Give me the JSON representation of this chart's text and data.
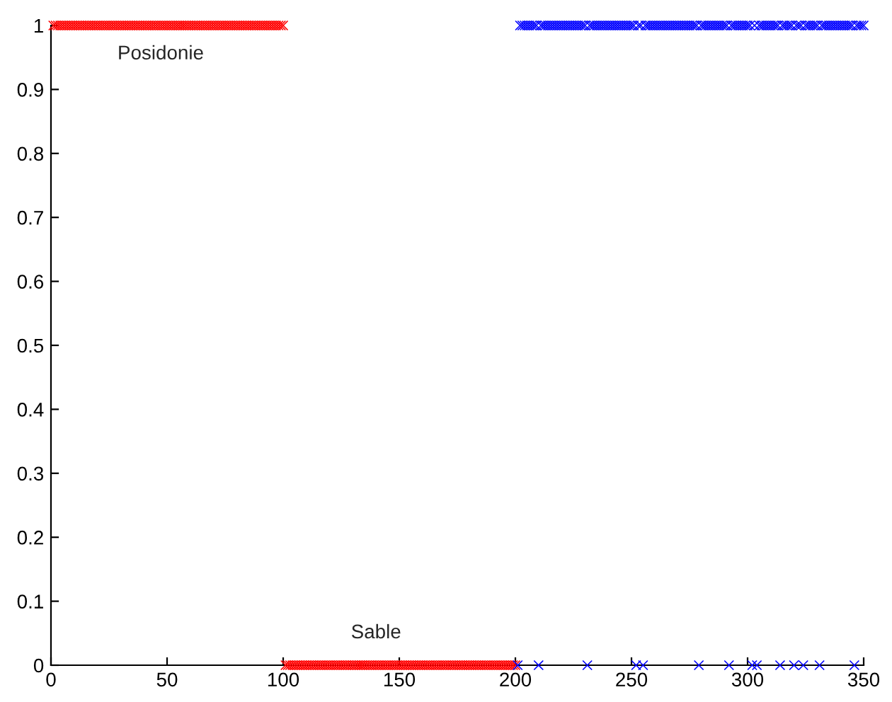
{
  "chart_data": {
    "type": "scatter",
    "marker": "cross",
    "grid": false,
    "legend": false,
    "xlim": [
      0,
      350
    ],
    "xticks": [
      0,
      50,
      100,
      150,
      200,
      250,
      300,
      350
    ],
    "ylim": [
      0,
      1
    ],
    "yticks": [
      0,
      0.1,
      0.2,
      0.3,
      0.4,
      0.5,
      0.6,
      0.7,
      0.8,
      0.9,
      1
    ],
    "annotations": [
      "Posidonie",
      "Sable"
    ],
    "series": [
      {
        "color": "#ff0000",
        "x": [
          1,
          2,
          3,
          4,
          5,
          6,
          7,
          8,
          9,
          10,
          11,
          12,
          13,
          14,
          15,
          16,
          17,
          18,
          19,
          20,
          21,
          22,
          23,
          24,
          25,
          26,
          27,
          28,
          29,
          30,
          31,
          32,
          33,
          34,
          35,
          36,
          37,
          38,
          39,
          40,
          41,
          42,
          43,
          44,
          45,
          46,
          47,
          48,
          49,
          50,
          51,
          52,
          53,
          54,
          55,
          56,
          57,
          58,
          59,
          60,
          61,
          62,
          63,
          64,
          65,
          66,
          67,
          68,
          69,
          70,
          71,
          72,
          73,
          74,
          75,
          76,
          77,
          78,
          79,
          80,
          81,
          82,
          83,
          84,
          85,
          86,
          87,
          88,
          89,
          90,
          91,
          92,
          93,
          94,
          95,
          96,
          97,
          98,
          99,
          100,
          101,
          102,
          103,
          104,
          105,
          106,
          107,
          108,
          109,
          110,
          111,
          112,
          113,
          114,
          115,
          116,
          117,
          118,
          119,
          120,
          121,
          122,
          123,
          124,
          125,
          126,
          127,
          128,
          129,
          130,
          131,
          132,
          133,
          134,
          135,
          136,
          137,
          138,
          139,
          140,
          141,
          142,
          143,
          144,
          145,
          146,
          147,
          148,
          149,
          150,
          151,
          152,
          153,
          154,
          155,
          156,
          157,
          158,
          159,
          160,
          161,
          162,
          163,
          164,
          165,
          166,
          167,
          168,
          169,
          170,
          171,
          172,
          173,
          174,
          175,
          176,
          177,
          178,
          179,
          180,
          181,
          182,
          183,
          184,
          185,
          186,
          187,
          188,
          189,
          190,
          191,
          192,
          193,
          194,
          195,
          196,
          197,
          198,
          199,
          200
        ],
        "values": [
          1,
          1,
          1,
          1,
          1,
          1,
          1,
          1,
          1,
          1,
          1,
          1,
          1,
          1,
          1,
          1,
          1,
          1,
          1,
          1,
          1,
          1,
          1,
          1,
          1,
          1,
          1,
          1,
          1,
          1,
          1,
          1,
          1,
          1,
          1,
          1,
          1,
          1,
          1,
          1,
          1,
          1,
          1,
          1,
          1,
          1,
          1,
          1,
          1,
          1,
          1,
          1,
          1,
          1,
          1,
          1,
          1,
          1,
          1,
          1,
          1,
          1,
          1,
          1,
          1,
          1,
          1,
          1,
          1,
          1,
          1,
          1,
          1,
          1,
          1,
          1,
          1,
          1,
          1,
          1,
          1,
          1,
          1,
          1,
          1,
          1,
          1,
          1,
          1,
          1,
          1,
          1,
          1,
          1,
          1,
          1,
          1,
          1,
          1,
          1,
          0,
          0,
          0,
          0,
          0,
          0,
          0,
          0,
          0,
          0,
          0,
          0,
          0,
          0,
          0,
          0,
          0,
          0,
          0,
          0,
          0,
          0,
          0,
          0,
          0,
          0,
          0,
          0,
          0,
          0,
          0,
          0,
          0,
          0,
          0,
          0,
          0,
          0,
          0,
          0,
          0,
          0,
          0,
          0,
          0,
          0,
          0,
          0,
          0,
          0,
          0,
          0,
          0,
          0,
          0,
          0,
          0,
          0,
          0,
          0,
          0,
          0,
          0,
          0,
          0,
          0,
          0,
          0,
          0,
          0,
          0,
          0,
          0,
          0,
          0,
          0,
          0,
          0,
          0,
          0,
          0,
          0,
          0,
          0,
          0,
          0,
          0,
          0,
          0,
          0,
          0,
          0,
          0,
          0,
          0,
          0,
          0,
          0,
          0,
          0
        ]
      },
      {
        "color": "#0000ff",
        "x": [
          201,
          202,
          203,
          204,
          205,
          206,
          207,
          208,
          209,
          210,
          211,
          212,
          213,
          214,
          215,
          216,
          217,
          218,
          219,
          220,
          221,
          222,
          223,
          224,
          225,
          226,
          227,
          228,
          229,
          230,
          231,
          232,
          233,
          234,
          235,
          236,
          237,
          238,
          239,
          240,
          241,
          242,
          243,
          244,
          245,
          246,
          247,
          248,
          249,
          250,
          251,
          252,
          253,
          254,
          255,
          256,
          257,
          258,
          259,
          260,
          261,
          262,
          263,
          264,
          265,
          266,
          267,
          268,
          269,
          270,
          271,
          272,
          273,
          274,
          275,
          276,
          277,
          278,
          279,
          280,
          281,
          282,
          283,
          284,
          285,
          286,
          287,
          288,
          289,
          290,
          291,
          292,
          293,
          294,
          295,
          296,
          297,
          298,
          299,
          300,
          301,
          302,
          303,
          304,
          305,
          306,
          307,
          308,
          309,
          310,
          311,
          312,
          313,
          314,
          315,
          316,
          317,
          318,
          319,
          320,
          321,
          322,
          323,
          324,
          325,
          326,
          327,
          328,
          329,
          330,
          331,
          332,
          333,
          334,
          335,
          336,
          337,
          338,
          339,
          340,
          341,
          342,
          343,
          344,
          345,
          346,
          347,
          348,
          349,
          350
        ],
        "values": [
          0,
          1,
          1,
          1,
          1,
          1,
          1,
          1,
          1,
          0,
          1,
          1,
          1,
          1,
          1,
          1,
          1,
          1,
          1,
          1,
          1,
          1,
          1,
          1,
          1,
          1,
          1,
          1,
          1,
          1,
          0,
          1,
          1,
          1,
          1,
          1,
          1,
          1,
          1,
          1,
          1,
          1,
          1,
          1,
          1,
          1,
          1,
          1,
          1,
          1,
          1,
          0,
          1,
          1,
          0,
          1,
          1,
          1,
          1,
          1,
          1,
          1,
          1,
          1,
          1,
          1,
          1,
          1,
          1,
          1,
          1,
          1,
          1,
          1,
          1,
          1,
          1,
          1,
          0,
          1,
          1,
          1,
          1,
          1,
          1,
          1,
          1,
          1,
          1,
          1,
          1,
          0,
          1,
          1,
          1,
          1,
          1,
          1,
          1,
          1,
          1,
          0,
          1,
          0,
          1,
          1,
          1,
          1,
          1,
          1,
          1,
          1,
          1,
          0,
          1,
          1,
          1,
          1,
          1,
          0,
          1,
          1,
          1,
          0,
          1,
          1,
          1,
          1,
          1,
          1,
          0,
          1,
          1,
          1,
          1,
          1,
          1,
          1,
          1,
          1,
          1,
          1,
          1,
          1,
          1,
          0,
          1,
          1,
          1,
          1
        ]
      }
    ]
  }
}
